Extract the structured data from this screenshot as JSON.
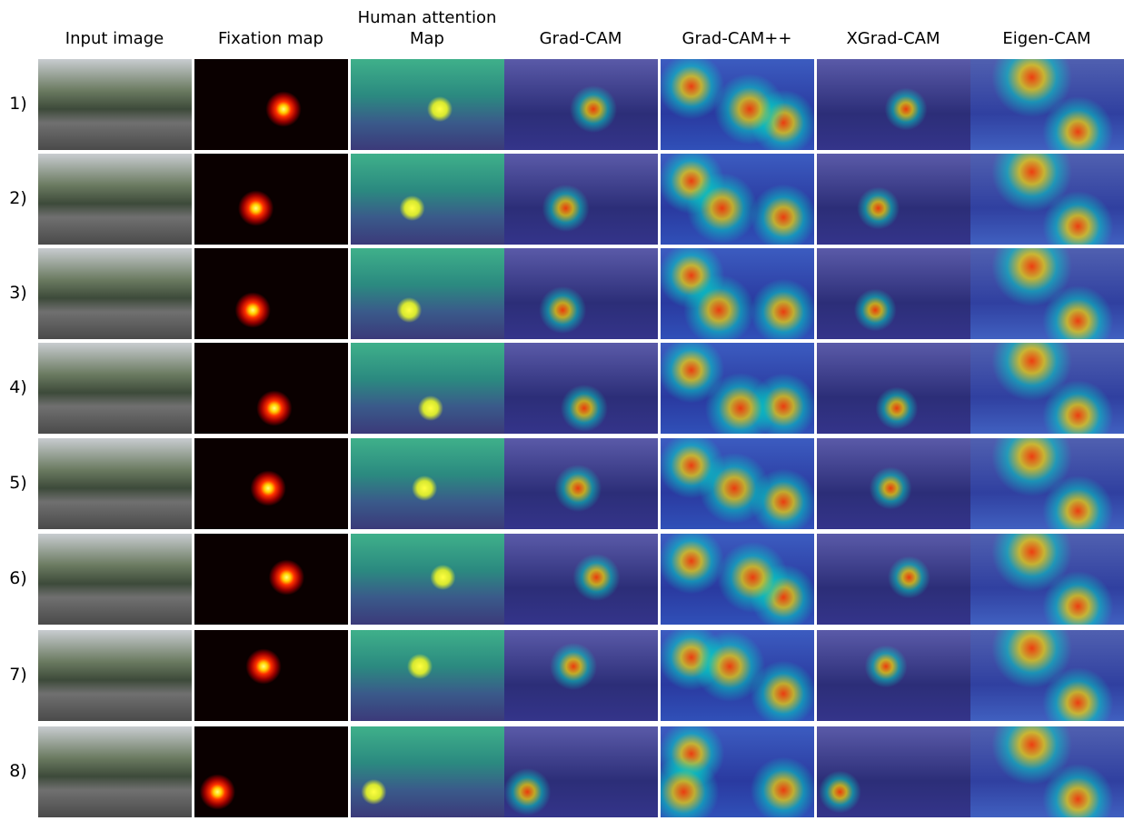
{
  "columns": [
    "Input image",
    "Fixation map",
    "Human attention Map",
    "Grad-CAM",
    "Grad-CAM++",
    "XGrad-CAM",
    "Eigen-CAM"
  ],
  "rows": [
    "1)",
    "2)",
    "3)",
    "4)",
    "5)",
    "6)",
    "7)",
    "8)"
  ]
}
